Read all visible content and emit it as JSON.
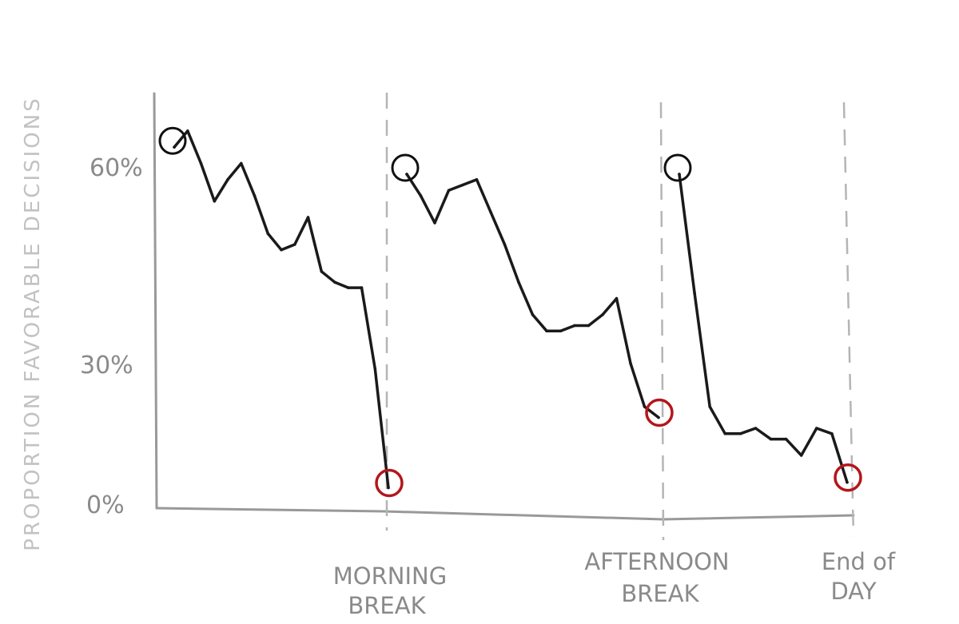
{
  "chart_data": {
    "type": "line",
    "title": "",
    "xlabel": "",
    "ylabel": "PROPORTION FAVORABLE DECISIONS",
    "ylim": [
      0,
      70
    ],
    "y_ticks": [
      {
        "value": 0,
        "label": "0%"
      },
      {
        "value": 30,
        "label": "30%"
      },
      {
        "value": 60,
        "label": "60%"
      }
    ],
    "x_markers": [
      {
        "label_lines": [
          "MORNING",
          "BREAK"
        ]
      },
      {
        "label_lines": [
          "AFTERNOON",
          "BREAK"
        ]
      },
      {
        "label_lines": [
          "End of",
          "DAY"
        ]
      }
    ],
    "grid": false,
    "session_start_color": "#111111",
    "session_end_color": "#b3161b",
    "line_color": "#1a1a1a",
    "axis_color": "#999999",
    "series": [
      {
        "session": 1,
        "values": [
          [
            0,
            65
          ],
          [
            1,
            68
          ],
          [
            2,
            62
          ],
          [
            3,
            55
          ],
          [
            4,
            59
          ],
          [
            5,
            62
          ],
          [
            6,
            56
          ],
          [
            7,
            49
          ],
          [
            8,
            46
          ],
          [
            9,
            47
          ],
          [
            10,
            52
          ],
          [
            11,
            42
          ],
          [
            12,
            40
          ],
          [
            13,
            39
          ],
          [
            14,
            39
          ],
          [
            15,
            24
          ],
          [
            16,
            2
          ]
        ]
      },
      {
        "session": 2,
        "values": [
          [
            0,
            60
          ],
          [
            1,
            56
          ],
          [
            2,
            51
          ],
          [
            3,
            57
          ],
          [
            4,
            58
          ],
          [
            5,
            59
          ],
          [
            6,
            53
          ],
          [
            7,
            47
          ],
          [
            8,
            40
          ],
          [
            9,
            34
          ],
          [
            10,
            31
          ],
          [
            11,
            31
          ],
          [
            12,
            32
          ],
          [
            13,
            32
          ],
          [
            14,
            34
          ],
          [
            15,
            37
          ],
          [
            16,
            25
          ],
          [
            17,
            17
          ],
          [
            18,
            15
          ]
        ]
      },
      {
        "session": 3,
        "values": [
          [
            0,
            60
          ],
          [
            1,
            38
          ],
          [
            2,
            17
          ],
          [
            3,
            12
          ],
          [
            4,
            12
          ],
          [
            5,
            13
          ],
          [
            6,
            11
          ],
          [
            7,
            11
          ],
          [
            8,
            8
          ],
          [
            9,
            13
          ],
          [
            10,
            12
          ],
          [
            11,
            3
          ]
        ]
      }
    ]
  }
}
